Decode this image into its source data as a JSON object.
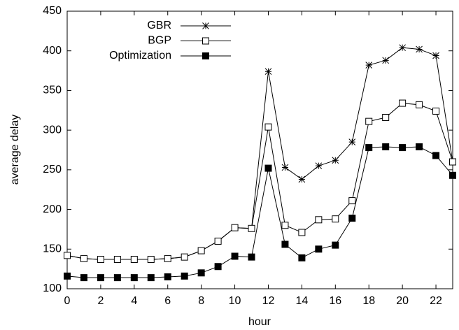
{
  "chart_data": {
    "type": "line",
    "x_label": "hour",
    "y_label": "average delay",
    "x": [
      0,
      1,
      2,
      3,
      4,
      5,
      6,
      7,
      8,
      9,
      10,
      11,
      12,
      13,
      14,
      15,
      16,
      17,
      18,
      19,
      20,
      21,
      22,
      23
    ],
    "series": [
      {
        "name": "GBR",
        "color": "#000000",
        "marker": "star",
        "values": [
          142,
          138,
          137,
          137,
          137,
          137,
          138,
          140,
          148,
          160,
          177,
          176,
          374,
          253,
          238,
          255,
          262,
          285,
          382,
          388,
          404,
          402,
          394,
          260
        ]
      },
      {
        "name": "BGP",
        "color": "#000000",
        "marker": "open-square",
        "values": [
          142,
          138,
          137,
          137,
          137,
          137,
          138,
          140,
          148,
          160,
          177,
          176,
          304,
          180,
          171,
          187,
          188,
          211,
          311,
          316,
          334,
          332,
          324,
          260
        ]
      },
      {
        "name": "Optimization",
        "color": "#000000",
        "marker": "filled-square",
        "values": [
          116,
          114,
          114,
          114,
          114,
          114,
          115,
          116,
          120,
          128,
          141,
          140,
          252,
          156,
          139,
          150,
          155,
          189,
          278,
          279,
          278,
          279,
          268,
          243
        ]
      }
    ],
    "xlim": [
      0,
      23
    ],
    "xticks": [
      0,
      2,
      4,
      6,
      8,
      10,
      12,
      14,
      16,
      18,
      20,
      22
    ],
    "ylim": [
      100,
      450
    ],
    "yticks": [
      100,
      150,
      200,
      250,
      300,
      350,
      400,
      450
    ],
    "grid": false,
    "legend": "top-left"
  }
}
